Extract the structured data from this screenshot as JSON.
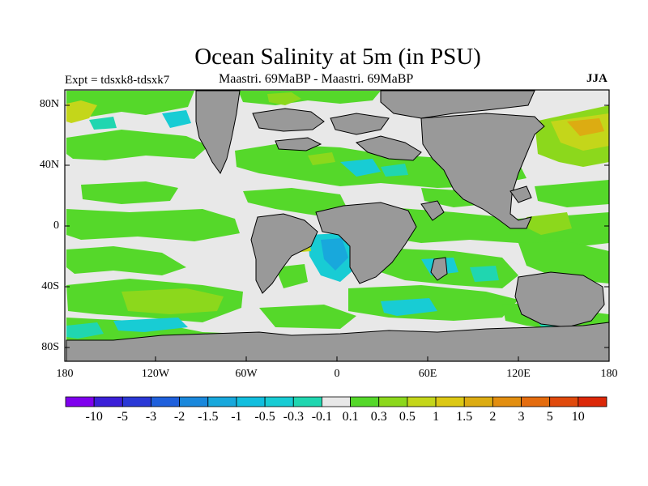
{
  "title": "Ocean Salinity at 5m (in PSU)",
  "experiment": "Expt = tdsxk8-tdsxk7",
  "subtitle": "Maastri.  69MaBP - Maastri.  69MaBP",
  "season": "JJA",
  "lat_ticks": [
    "80N",
    "40N",
    "0",
    "40S",
    "80S"
  ],
  "lon_ticks": [
    "180",
    "120W",
    "60W",
    "0",
    "60E",
    "120E",
    "180"
  ],
  "colorbar": {
    "labels": [
      "-10",
      "-5",
      "-3",
      "-2",
      "-1.5",
      "-1",
      "-0.5",
      "-0.3",
      "-0.1",
      "0.1",
      "0.3",
      "0.5",
      "1",
      "1.5",
      "2",
      "3",
      "5",
      "10"
    ],
    "colors": [
      "#7f00ee",
      "#3b20d8",
      "#2a38d6",
      "#1f60dc",
      "#1a88dc",
      "#18a8dc",
      "#12bede",
      "#18ccd4",
      "#20d6b0",
      "#e8e8e8",
      "#55d82a",
      "#8cd81c",
      "#c4d61a",
      "#dcc814",
      "#dcac12",
      "#e28e10",
      "#e46c0e",
      "#e04a0c",
      "#dc2808"
    ]
  },
  "colors": {
    "land": "#999999",
    "neutral": "#e8e8e8",
    "green": "#55d82a",
    "lime": "#8cd81c",
    "yellow": "#c4d61a",
    "orange": "#dcac12",
    "cyan": "#18ccd4",
    "aqua": "#20d6b0",
    "blue": "#18a8dc"
  }
}
